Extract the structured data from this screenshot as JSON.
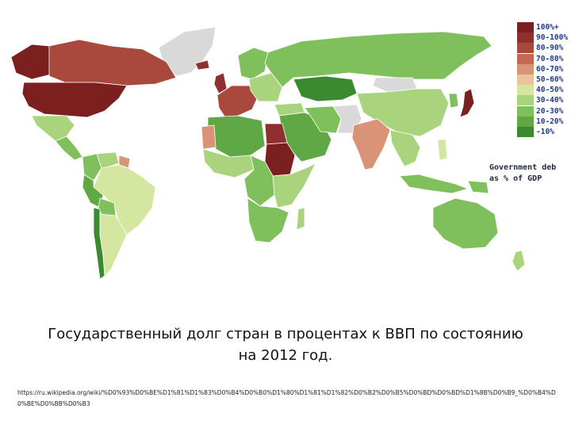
{
  "legend": {
    "items": [
      {
        "label": "100%+",
        "color": "#7b1f1f"
      },
      {
        "label": "90-100%",
        "color": "#8f2f2f"
      },
      {
        "label": "80-90%",
        "color": "#a9483c"
      },
      {
        "label": "70-80%",
        "color": "#c06a52"
      },
      {
        "label": "60-70%",
        "color": "#d99477"
      },
      {
        "label": "50-60%",
        "color": "#ecc39f"
      },
      {
        "label": "40-50%",
        "color": "#d4e69f"
      },
      {
        "label": "30-40%",
        "color": "#a9d47d"
      },
      {
        "label": "20-30%",
        "color": "#7fbf5c"
      },
      {
        "label": "10-20%",
        "color": "#5fa845"
      },
      {
        "label": "-10%",
        "color": "#3c8a30"
      }
    ],
    "title_line1": "Government deb",
    "title_line2": "as % of GDP"
  },
  "caption": {
    "line1": "Государственный долг стран в процентах к ВВП по состоянию",
    "line2": "на 2012 год."
  },
  "source_url": "https://ru.wikipedia.org/wiki/%D0%93%D0%BE%D1%81%D1%83%D0%B4%D0%B0%D1%80%D1%81%D1%82%D0%B2%D0%B5%D0%BD%D0%BD%D1%8B%D0%B9_%D0%B4%D0%BE%D0%BB%D0%B3",
  "regions": [
    {
      "name": "Greenland",
      "color": "#d9d9d9"
    },
    {
      "name": "Alaska",
      "color": "#7b1f1f"
    },
    {
      "name": "Canada",
      "color": "#a9483c"
    },
    {
      "name": "United States",
      "color": "#7b1f1f"
    },
    {
      "name": "Mexico",
      "color": "#a9d47d"
    },
    {
      "name": "Central America",
      "color": "#7fbf5c"
    },
    {
      "name": "Colombia",
      "color": "#7fbf5c"
    },
    {
      "name": "Venezuela",
      "color": "#a9d47d"
    },
    {
      "name": "Guianas",
      "color": "#d99477"
    },
    {
      "name": "Brazil",
      "color": "#d4e69f"
    },
    {
      "name": "Peru",
      "color": "#5fa845"
    },
    {
      "name": "Bolivia",
      "color": "#7fbf5c"
    },
    {
      "name": "Chile",
      "color": "#3c8a30"
    },
    {
      "name": "Argentina",
      "color": "#d4e69f"
    },
    {
      "name": "Iceland",
      "color": "#8f2f2f"
    },
    {
      "name": "UK & Ireland",
      "color": "#8f2f2f"
    },
    {
      "name": "Western Europe",
      "color": "#a9483c"
    },
    {
      "name": "Scandinavia",
      "color": "#7fbf5c"
    },
    {
      "name": "Eastern Europe",
      "color": "#a9d47d"
    },
    {
      "name": "Russia",
      "color": "#7fbf5c"
    },
    {
      "name": "Kazakhstan & Central Asia",
      "color": "#3c8a30"
    },
    {
      "name": "Mongolia",
      "color": "#d9d9d9"
    },
    {
      "name": "China",
      "color": "#a9d47d"
    },
    {
      "name": "Japan",
      "color": "#7b1f1f"
    },
    {
      "name": "Korea",
      "color": "#7fbf5c"
    },
    {
      "name": "Turkey",
      "color": "#a9d47d"
    },
    {
      "name": "Middle East",
      "color": "#5fa845"
    },
    {
      "name": "Iran",
      "color": "#7fbf5c"
    },
    {
      "name": "Afghanistan & Pakistan",
      "color": "#d9d9d9"
    },
    {
      "name": "India",
      "color": "#d99477"
    },
    {
      "name": "Southeast Asia",
      "color": "#a9d47d"
    },
    {
      "name": "Indonesia",
      "color": "#7fbf5c"
    },
    {
      "name": "Philippines",
      "color": "#d4e69f"
    },
    {
      "name": "Papua New Guinea",
      "color": "#7fbf5c"
    },
    {
      "name": "North Africa West",
      "color": "#5fa845"
    },
    {
      "name": "Western Sahara",
      "color": "#d99477"
    },
    {
      "name": "Egypt",
      "color": "#8f2f2f"
    },
    {
      "name": "Sudan",
      "color": "#7b1f1f"
    },
    {
      "name": "West Africa",
      "color": "#a9d47d"
    },
    {
      "name": "Central Africa",
      "color": "#7fbf5c"
    },
    {
      "name": "East Africa",
      "color": "#a9d47d"
    },
    {
      "name": "Southern Africa",
      "color": "#7fbf5c"
    },
    {
      "name": "Madagascar",
      "color": "#a9d47d"
    },
    {
      "name": "Australia",
      "color": "#7fbf5c"
    },
    {
      "name": "New Zealand",
      "color": "#a9d47d"
    }
  ]
}
